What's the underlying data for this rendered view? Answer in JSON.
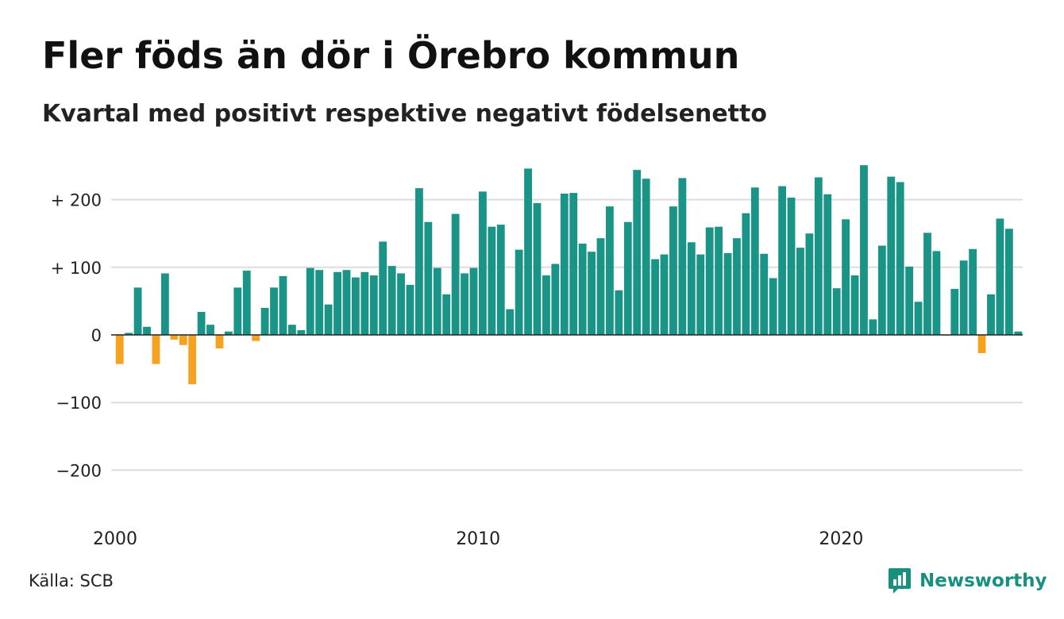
{
  "title": "Fler föds än dör i Örebro kommun",
  "subtitle": "Kvartal med positivt respektive negativt födelsenetto",
  "source": "Källa: SCB",
  "brand": {
    "name": "Newsworthy",
    "icon": "newsworthy-logo-icon"
  },
  "colors": {
    "positive": "#1a9486",
    "negative": "#f5a31f",
    "grid": "#dddddd",
    "axis": "#222222",
    "text": "#222222"
  },
  "chart_data": {
    "type": "bar",
    "x_start": "2000-Q1",
    "period": "quarter",
    "values": [
      -43,
      3,
      70,
      12,
      -43,
      91,
      -7,
      -15,
      -73,
      34,
      15,
      -20,
      5,
      70,
      95,
      -9,
      40,
      70,
      87,
      15,
      7,
      99,
      96,
      45,
      93,
      96,
      85,
      93,
      88,
      138,
      102,
      91,
      74,
      217,
      167,
      99,
      60,
      179,
      91,
      99,
      212,
      160,
      163,
      38,
      126,
      246,
      195,
      88,
      105,
      209,
      210,
      135,
      123,
      143,
      190,
      66,
      167,
      244,
      231,
      112,
      119,
      190,
      232,
      137,
      119,
      159,
      160,
      121,
      143,
      180,
      218,
      120,
      84,
      220,
      203,
      129,
      150,
      233,
      208,
      69,
      171,
      88,
      251,
      23,
      132,
      234,
      226,
      101,
      49,
      151,
      124,
      -1,
      68,
      110,
      127,
      -27,
      60,
      172,
      157,
      5
    ],
    "y_ticks": [
      {
        "value": 200,
        "label": "+ 200"
      },
      {
        "value": 100,
        "label": "+ 100"
      },
      {
        "value": 0,
        "label": "0"
      },
      {
        "value": -100,
        "label": "−100"
      },
      {
        "value": -200,
        "label": "−200"
      }
    ],
    "x_ticks": [
      {
        "index": 0,
        "label": "2000"
      },
      {
        "index": 40,
        "label": "2010"
      },
      {
        "index": 80,
        "label": "2020"
      }
    ],
    "ylim": [
      -240,
      260
    ],
    "grid": true,
    "legend": "none",
    "xlabel": "",
    "ylabel": ""
  }
}
